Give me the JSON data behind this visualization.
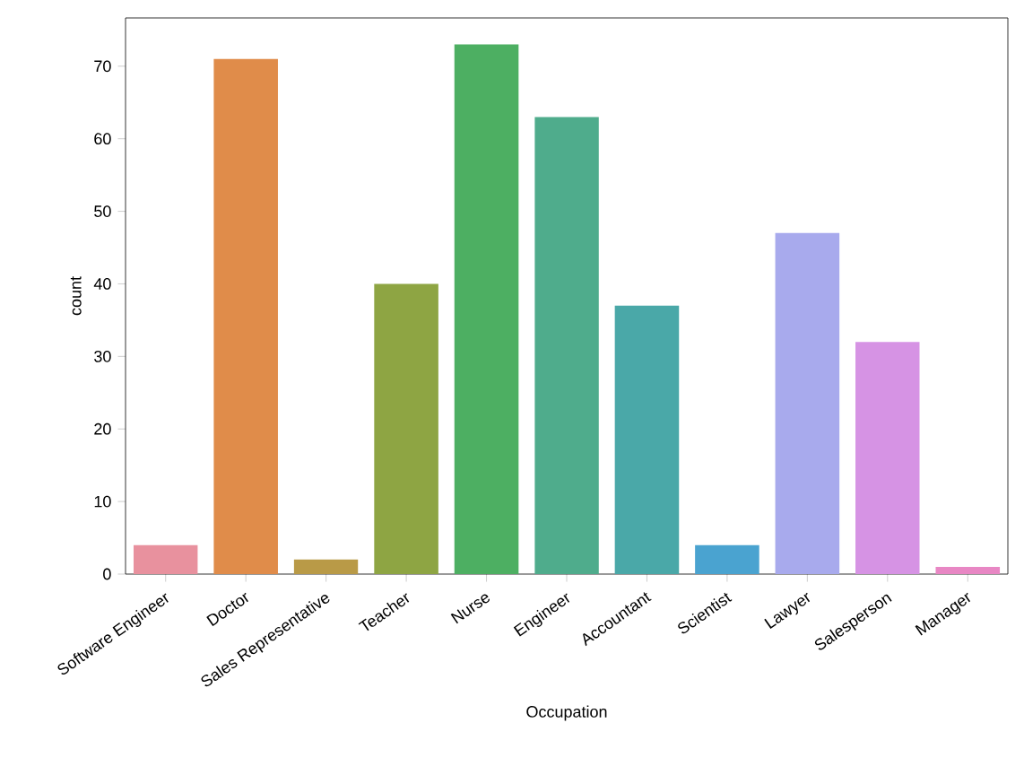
{
  "chart_data": {
    "type": "bar",
    "xlabel": "Occupation",
    "ylabel": "count",
    "categories": [
      "Software Engineer",
      "Doctor",
      "Sales Representative",
      "Teacher",
      "Nurse",
      "Engineer",
      "Accountant",
      "Scientist",
      "Lawyer",
      "Salesperson",
      "Manager"
    ],
    "values": [
      4,
      71,
      2,
      40,
      73,
      63,
      37,
      4,
      47,
      32,
      1
    ],
    "colors": [
      "#e8919e",
      "#e08c4a",
      "#b99a47",
      "#8ea543",
      "#4daf62",
      "#4fac8c",
      "#4aa8a8",
      "#4aa3d0",
      "#a8aaed",
      "#d693e4",
      "#e887c4"
    ],
    "ylim": [
      0,
      76.65
    ],
    "yticks": [
      0,
      10,
      20,
      30,
      40,
      50,
      60,
      70
    ],
    "grid": false
  }
}
